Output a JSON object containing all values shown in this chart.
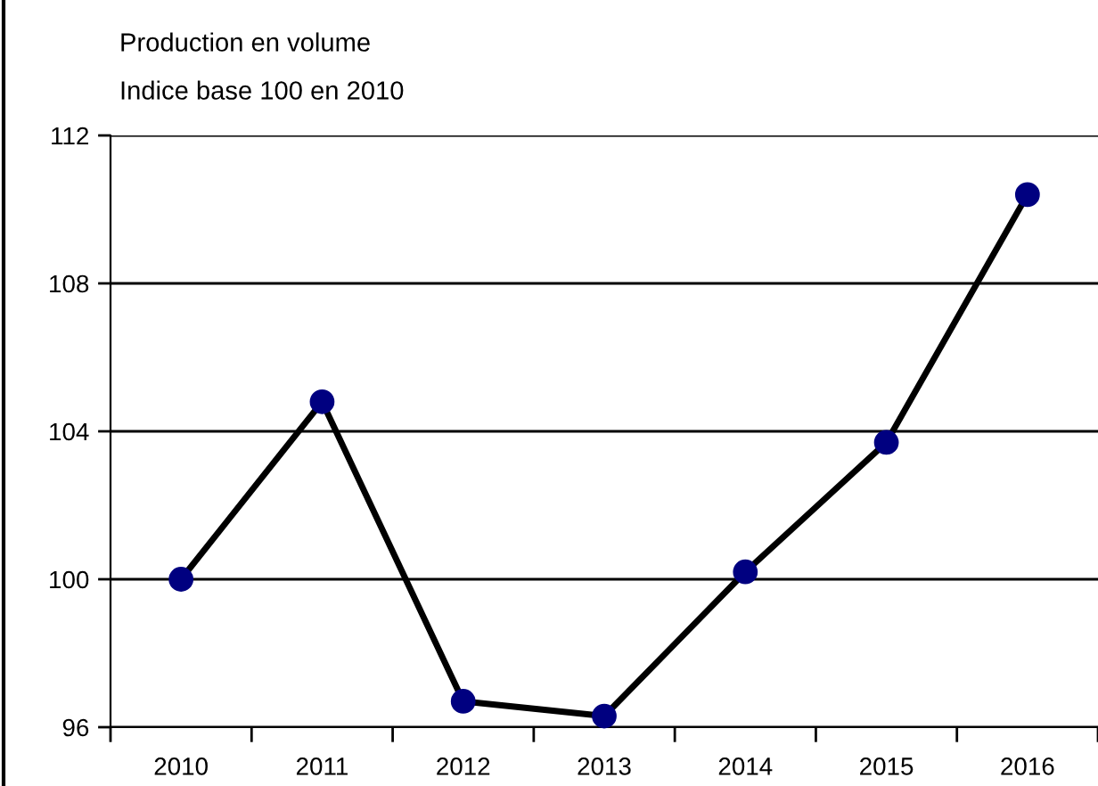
{
  "chart_data": {
    "type": "line",
    "annotations": [
      "Production en volume",
      "Indice base 100 en 2010"
    ],
    "categories": [
      "2010",
      "2011",
      "2012",
      "2013",
      "2014",
      "2015",
      "2016"
    ],
    "series": [
      {
        "color": "#000000",
        "colors": [
          "#000080",
          "#000080",
          "#000080",
          "#000080",
          "#000080",
          "#000080",
          "#000080"
        ],
        "values": [
          100.0,
          104.8,
          96.7,
          96.3,
          100.2,
          103.7,
          110.4
        ]
      }
    ],
    "marker": "circle",
    "line_style": "solid",
    "ylim": [
      96,
      112
    ],
    "yticks": [
      96,
      100,
      104,
      108,
      112
    ],
    "grid": "y"
  }
}
